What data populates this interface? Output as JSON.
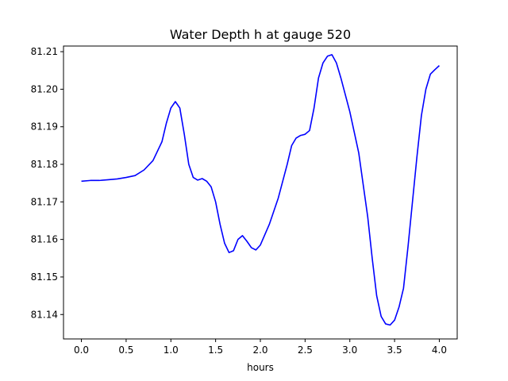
{
  "chart_data": {
    "type": "line",
    "title": "Water Depth h at gauge 520",
    "xlabel": "hours",
    "ylabel": "",
    "xlim": [
      -0.2,
      4.2
    ],
    "ylim": [
      81.1335,
      81.2115
    ],
    "xticks": [
      0.0,
      0.5,
      1.0,
      1.5,
      2.0,
      2.5,
      3.0,
      3.5,
      4.0
    ],
    "xtick_labels": [
      "0.0",
      "0.5",
      "1.0",
      "1.5",
      "2.0",
      "2.5",
      "3.0",
      "3.5",
      "4.0"
    ],
    "yticks": [
      81.14,
      81.15,
      81.16,
      81.17,
      81.18,
      81.19,
      81.2,
      81.21
    ],
    "ytick_labels": [
      "81.14",
      "81.15",
      "81.16",
      "81.17",
      "81.18",
      "81.19",
      "81.20",
      "81.21"
    ],
    "grid": false,
    "series": [
      {
        "color": "#0000ff",
        "x": [
          0.0,
          0.1,
          0.2,
          0.3,
          0.4,
          0.5,
          0.6,
          0.7,
          0.8,
          0.9,
          0.95,
          1.0,
          1.05,
          1.1,
          1.15,
          1.2,
          1.25,
          1.3,
          1.35,
          1.4,
          1.45,
          1.5,
          1.55,
          1.6,
          1.65,
          1.7,
          1.75,
          1.8,
          1.85,
          1.9,
          1.95,
          2.0,
          2.1,
          2.2,
          2.3,
          2.35,
          2.4,
          2.45,
          2.5,
          2.55,
          2.6,
          2.65,
          2.7,
          2.75,
          2.8,
          2.85,
          2.9,
          3.0,
          3.1,
          3.2,
          3.25,
          3.3,
          3.35,
          3.4,
          3.45,
          3.5,
          3.55,
          3.6,
          3.65,
          3.7,
          3.75,
          3.8,
          3.85,
          3.9,
          3.95,
          4.0
        ],
        "y": [
          81.1755,
          81.1757,
          81.1757,
          81.1759,
          81.1761,
          81.1765,
          81.177,
          81.1785,
          81.181,
          81.186,
          81.191,
          81.195,
          81.1967,
          81.195,
          81.188,
          81.18,
          81.1765,
          81.1758,
          81.1762,
          81.1755,
          81.174,
          81.17,
          81.164,
          81.159,
          81.1565,
          81.157,
          81.16,
          81.161,
          81.1595,
          81.1578,
          81.1572,
          81.1585,
          81.164,
          81.171,
          81.18,
          81.185,
          81.187,
          81.1877,
          81.188,
          81.189,
          81.195,
          81.203,
          81.207,
          81.2088,
          81.2092,
          81.207,
          81.203,
          81.194,
          81.183,
          81.166,
          81.155,
          81.145,
          81.1395,
          81.1375,
          81.1372,
          81.1385,
          81.142,
          81.147,
          81.158,
          81.17,
          81.182,
          81.193,
          81.2,
          81.204,
          81.2052,
          81.2063
        ]
      }
    ]
  }
}
